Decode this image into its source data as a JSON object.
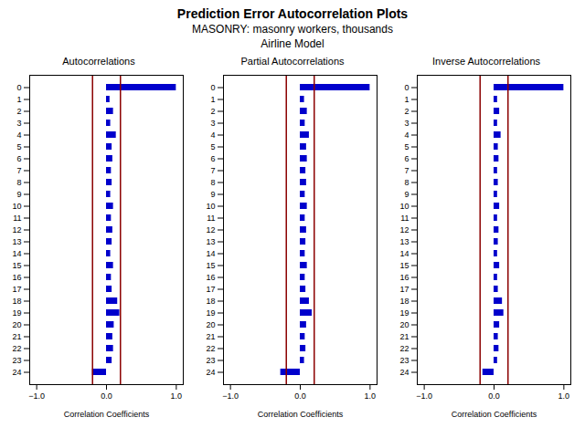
{
  "title": "Prediction Error Autocorrelation Plots",
  "subtitle": [
    "MASONRY: masonry workers, thousands",
    "Airline Model"
  ],
  "chart_data": [
    {
      "type": "bar",
      "orientation": "horizontal",
      "title": "Autocorrelations",
      "xlabel": "Correlation Coefficients",
      "categories": [
        0,
        1,
        2,
        3,
        4,
        5,
        6,
        7,
        8,
        9,
        10,
        11,
        12,
        13,
        14,
        15,
        16,
        17,
        18,
        19,
        20,
        21,
        22,
        23,
        24
      ],
      "values": [
        1.0,
        0.05,
        0.1,
        0.06,
        0.14,
        0.08,
        0.09,
        0.07,
        0.08,
        0.06,
        0.1,
        0.07,
        0.09,
        0.08,
        0.06,
        0.1,
        0.07,
        0.08,
        0.16,
        0.19,
        0.11,
        0.09,
        0.1,
        0.08,
        -0.2
      ],
      "color": "#0000CC",
      "confidence_bound": {
        "value": 0.2,
        "color": "#8B0000"
      },
      "xlim": [
        -1.1,
        1.1
      ],
      "xticks": [
        -1,
        0,
        1
      ],
      "grid": false
    },
    {
      "type": "bar",
      "orientation": "horizontal",
      "title": "Partial Autocorrelations",
      "xlabel": "Correlation Coefficients",
      "categories": [
        0,
        1,
        2,
        3,
        4,
        5,
        6,
        7,
        8,
        9,
        10,
        11,
        12,
        13,
        14,
        15,
        16,
        17,
        18,
        19,
        20,
        21,
        22,
        23,
        24
      ],
      "values": [
        1.0,
        0.06,
        0.1,
        0.07,
        0.13,
        0.09,
        0.1,
        0.08,
        0.09,
        0.07,
        0.1,
        0.07,
        0.09,
        0.08,
        0.07,
        0.1,
        0.07,
        0.08,
        0.13,
        0.17,
        0.09,
        0.07,
        0.08,
        0.06,
        -0.28
      ],
      "color": "#0000CC",
      "confidence_bound": {
        "value": 0.2,
        "color": "#8B0000"
      },
      "xlim": [
        -1.1,
        1.1
      ],
      "xticks": [
        -1,
        0,
        1
      ],
      "grid": false
    },
    {
      "type": "bar",
      "orientation": "horizontal",
      "title": "Inverse Autocorrelations",
      "xlabel": "Correlation Coefficients",
      "categories": [
        0,
        1,
        2,
        3,
        4,
        5,
        6,
        7,
        8,
        9,
        10,
        11,
        12,
        13,
        14,
        15,
        16,
        17,
        18,
        19,
        20,
        21,
        22,
        23,
        24
      ],
      "values": [
        1.0,
        0.05,
        0.08,
        0.05,
        0.1,
        0.06,
        0.07,
        0.05,
        0.06,
        0.05,
        0.08,
        0.05,
        0.07,
        0.06,
        0.05,
        0.08,
        0.05,
        0.06,
        0.12,
        0.14,
        0.08,
        0.06,
        0.07,
        0.05,
        -0.16
      ],
      "color": "#0000CC",
      "confidence_bound": {
        "value": 0.2,
        "color": "#8B0000"
      },
      "xlim": [
        -1.1,
        1.1
      ],
      "xticks": [
        -1,
        0,
        1
      ],
      "grid": false
    }
  ]
}
